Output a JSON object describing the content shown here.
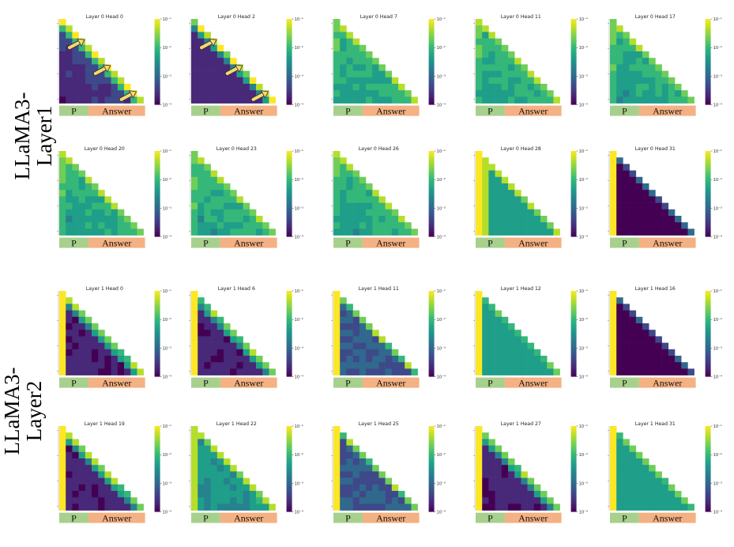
{
  "figure": {
    "row_groups": [
      {
        "label_lines": [
          "LLaMA3-",
          "Layer1"
        ]
      },
      {
        "label_lines": [
          "LLaMA3-",
          "Layer2"
        ]
      }
    ],
    "region_labels": {
      "prompt": "P",
      "answer": "Answer"
    },
    "colors": {
      "viridis": [
        "#440154",
        "#482878",
        "#3e4989",
        "#31688e",
        "#26828e",
        "#1f9e89",
        "#35b779",
        "#6ece58",
        "#b5de2b",
        "#fde725"
      ],
      "prompt_bar": "#a8d08d",
      "answer_bar": "#f4b183",
      "arrow": "#f7d774",
      "arrow_outline": "#333333"
    }
  },
  "chart_data": [
    {
      "type": "heatmap",
      "title": "Layer 0 Head 0",
      "colorbar": {
        "scale": "log",
        "range": [
          0.0001,
          0.1
        ],
        "ticks": [
          "10⁻¹",
          "10⁻²",
          "10⁻³",
          "10⁻⁴"
        ]
      },
      "pattern": "diag_bright",
      "arrows": 3
    },
    {
      "type": "heatmap",
      "title": "Layer 0 Head 2",
      "colorbar": {
        "scale": "log",
        "range": [
          0.0001,
          0.1
        ],
        "ticks": [
          "10⁻¹",
          "10⁻²",
          "10⁻³",
          "10⁻⁴"
        ]
      },
      "pattern": "diag_dark",
      "arrows": 3
    },
    {
      "type": "heatmap",
      "title": "Layer 0 Head 7",
      "colorbar": {
        "scale": "log",
        "range": [
          0.0001,
          0.1
        ],
        "ticks": [
          "10⁻¹",
          "10⁻²",
          "10⁻³",
          "10⁻⁴"
        ]
      },
      "pattern": "uniform_green",
      "arrows": 0
    },
    {
      "type": "heatmap",
      "title": "Layer 0 Head 11",
      "colorbar": {
        "scale": "log",
        "range": [
          0.0001,
          0.1
        ],
        "ticks": [
          "10⁻¹",
          "10⁻²",
          "10⁻³",
          "10⁻⁴"
        ]
      },
      "pattern": "uniform_green",
      "arrows": 0
    },
    {
      "type": "heatmap",
      "title": "Layer 0 Head 17",
      "colorbar": {
        "scale": "log",
        "range": [
          0.0001,
          0.1
        ],
        "ticks": [
          "10⁻¹",
          "10⁻²",
          "10⁻³",
          "10⁻⁴"
        ]
      },
      "pattern": "uniform_green",
      "arrows": 0
    },
    {
      "type": "heatmap",
      "title": "Layer 0 Head 20",
      "colorbar": {
        "scale": "log",
        "range": [
          0.0001,
          0.1
        ],
        "ticks": [
          "10⁻¹",
          "10⁻²",
          "10⁻³",
          "10⁻⁴"
        ]
      },
      "pattern": "uniform_green",
      "arrows": 0
    },
    {
      "type": "heatmap",
      "title": "Layer 0 Head 23",
      "colorbar": {
        "scale": "log",
        "range": [
          0.0001,
          0.1
        ],
        "ticks": [
          "10⁻¹",
          "10⁻²",
          "10⁻³",
          "10⁻⁴"
        ]
      },
      "pattern": "uniform_green",
      "arrows": 0
    },
    {
      "type": "heatmap",
      "title": "Layer 0 Head 26",
      "colorbar": {
        "scale": "log",
        "range": [
          0.0001,
          0.1
        ],
        "ticks": [
          "10⁻¹",
          "10⁻²",
          "10⁻³",
          "10⁻⁴"
        ]
      },
      "pattern": "uniform_green",
      "arrows": 0
    },
    {
      "type": "heatmap",
      "title": "Layer 0 Head 28",
      "colorbar": {
        "scale": "log",
        "range": [
          0.0001,
          0.1
        ],
        "ticks": [
          "10⁻¹",
          "10⁻²",
          "10⁻³",
          "10⁻⁴"
        ]
      },
      "pattern": "first_cols_bright",
      "arrows": 0
    },
    {
      "type": "heatmap",
      "title": "Layer 0 Head 31",
      "colorbar": {
        "scale": "log",
        "range": [
          0.0001,
          0.1
        ],
        "ticks": [
          "10⁻¹",
          "10⁻²",
          "10⁻³",
          "10⁻⁴"
        ]
      },
      "pattern": "sink_dark",
      "arrows": 0
    },
    {
      "type": "heatmap",
      "title": "Layer 1 Head 0",
      "colorbar": {
        "scale": "log",
        "range": [
          0.0001,
          0.1
        ],
        "ticks": [
          "10⁻¹",
          "10⁻²",
          "10⁻³",
          "10⁻⁴"
        ]
      },
      "pattern": "sink_dark_diag",
      "arrows": 0
    },
    {
      "type": "heatmap",
      "title": "Layer 1 Head 6",
      "colorbar": {
        "scale": "log",
        "range": [
          0.0001,
          0.1
        ],
        "ticks": [
          "10⁻¹",
          "10⁻²",
          "10⁻³",
          "10⁻⁴"
        ]
      },
      "pattern": "sink_dark_diag",
      "arrows": 0
    },
    {
      "type": "heatmap",
      "title": "Layer 1 Head 11",
      "colorbar": {
        "scale": "log",
        "range": [
          0.0001,
          0.1
        ],
        "ticks": [
          "10⁻¹",
          "10⁻²",
          "10⁻³",
          "10⁻⁴"
        ]
      },
      "pattern": "sink_mid",
      "arrows": 0
    },
    {
      "type": "heatmap",
      "title": "Layer 1 Head 12",
      "colorbar": {
        "scale": "log",
        "range": [
          0.0001,
          0.1
        ],
        "ticks": [
          "10⁻¹",
          "10⁻²",
          "10⁻³",
          "10⁻⁴"
        ]
      },
      "pattern": "sink_green",
      "arrows": 0
    },
    {
      "type": "heatmap",
      "title": "Layer 1 Head 16",
      "colorbar": {
        "scale": "log",
        "range": [
          0.0001,
          0.1
        ],
        "ticks": [
          "10⁻¹",
          "10⁻²",
          "10⁻³",
          "10⁻⁴"
        ]
      },
      "pattern": "sink_dark",
      "arrows": 0
    },
    {
      "type": "heatmap",
      "title": "Layer 1 Head 19",
      "colorbar": {
        "scale": "log",
        "range": [
          0.0001,
          0.1
        ],
        "ticks": [
          "10⁻¹",
          "10⁻²",
          "10⁻³",
          "10⁻⁴"
        ]
      },
      "pattern": "sink_dark_diag",
      "arrows": 0
    },
    {
      "type": "heatmap",
      "title": "Layer 1 Head 22",
      "colorbar": {
        "scale": "log",
        "range": [
          0.0001,
          0.1
        ],
        "ticks": [
          "10⁻¹",
          "10⁻²",
          "10⁻³",
          "10⁻⁴"
        ]
      },
      "pattern": "uniform_teal",
      "arrows": 0
    },
    {
      "type": "heatmap",
      "title": "Layer 1 Head 25",
      "colorbar": {
        "scale": "log",
        "range": [
          0.0001,
          0.1
        ],
        "ticks": [
          "10⁻¹",
          "10⁻²",
          "10⁻³",
          "10⁻⁴"
        ]
      },
      "pattern": "sink_mid",
      "arrows": 0
    },
    {
      "type": "heatmap",
      "title": "Layer 1 Head 27",
      "colorbar": {
        "scale": "log",
        "range": [
          0.0001,
          0.1
        ],
        "ticks": [
          "10⁻¹",
          "10⁻²",
          "10⁻³",
          "10⁻⁴"
        ]
      },
      "pattern": "sink_dark_diag",
      "arrows": 0
    },
    {
      "type": "heatmap",
      "title": "Layer 1 Head 31",
      "colorbar": {
        "scale": "log",
        "range": [
          0.0001,
          0.1
        ],
        "ticks": [
          "10⁻¹",
          "10⁻²",
          "10⁻³",
          "10⁻⁴"
        ]
      },
      "pattern": "sink_green",
      "arrows": 0
    }
  ]
}
